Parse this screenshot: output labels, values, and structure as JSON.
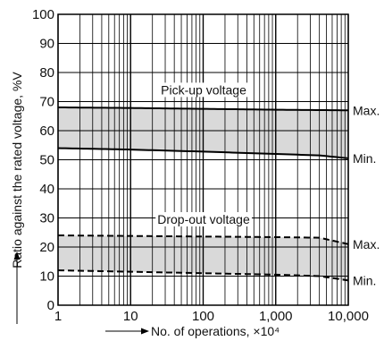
{
  "chart_data": {
    "type": "line",
    "xlabel": "No. of operations, ×10⁴",
    "ylabel": "Ratio against the rated voltage, %V",
    "x_scale": "log",
    "xlim": [
      1,
      10000
    ],
    "ylim": [
      0,
      100
    ],
    "x_ticks": [
      1,
      10,
      100,
      1000,
      10000
    ],
    "x_tick_labels": [
      "1",
      "10",
      "100",
      "1,000",
      "10,000"
    ],
    "y_ticks": [
      0,
      10,
      20,
      30,
      40,
      50,
      60,
      70,
      80,
      90,
      100
    ],
    "y_tick_labels": [
      "0",
      "10",
      "20",
      "30",
      "40",
      "50",
      "60",
      "70",
      "80",
      "90",
      "100"
    ],
    "grid": true,
    "bands": [
      {
        "name": "Pick-up voltage",
        "upper": {
          "x": [
            1,
            10,
            100,
            1000,
            10000
          ],
          "y": [
            68,
            67.8,
            67.5,
            67.2,
            67
          ]
        },
        "lower": {
          "x": [
            1,
            10,
            100,
            1000,
            4000,
            10000
          ],
          "y": [
            54,
            53.5,
            52.8,
            52,
            51.5,
            50.5
          ]
        },
        "fill": "#d9d9d9",
        "style": "solid"
      },
      {
        "name": "Drop-out voltage",
        "upper": {
          "x": [
            1,
            10,
            100,
            1000,
            4000,
            10000
          ],
          "y": [
            24,
            23.8,
            23.6,
            23.4,
            23.2,
            21
          ]
        },
        "lower": {
          "x": [
            1,
            10,
            100,
            1000,
            4000,
            10000
          ],
          "y": [
            12,
            11.5,
            11,
            10.5,
            10,
            8.5
          ]
        },
        "fill": "#d9d9d9",
        "style": "dashed"
      }
    ],
    "end_labels": [
      "Max.",
      "Min.",
      "Max.",
      "Min."
    ],
    "colors": {
      "line": "#000000",
      "band": "#d9d9d9",
      "grid": "#000000"
    }
  }
}
